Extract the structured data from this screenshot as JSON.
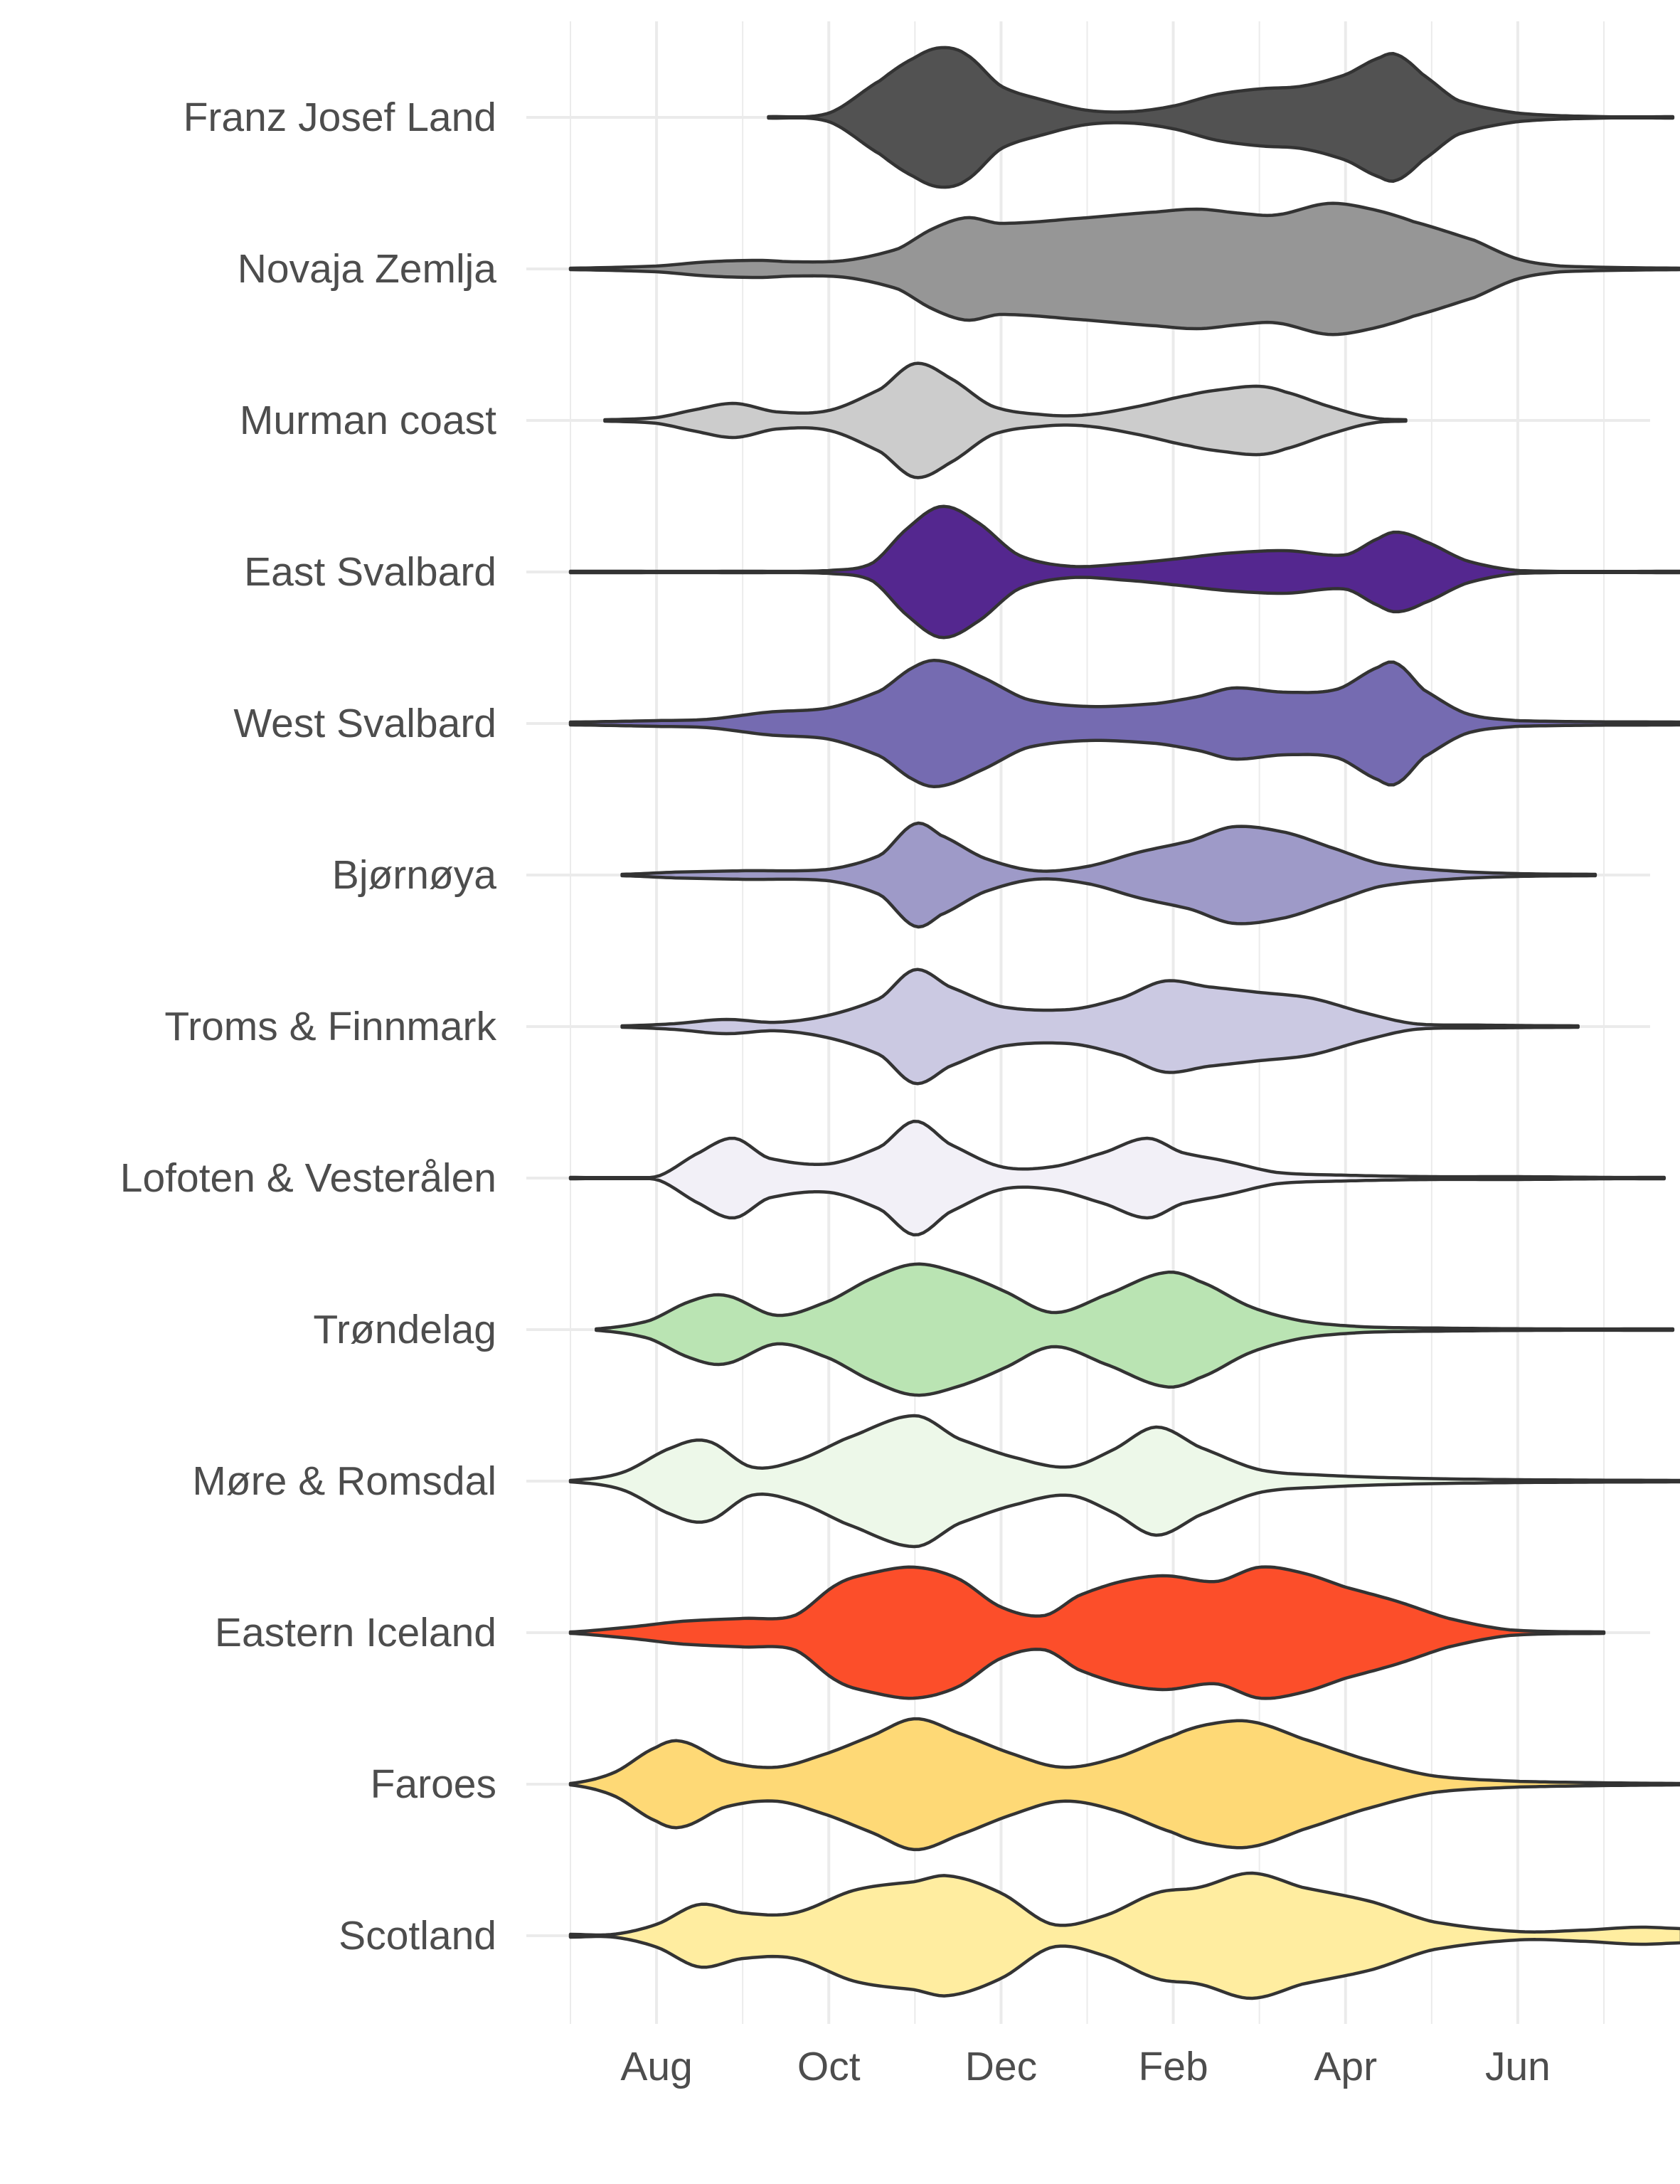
{
  "chart_data": {
    "type": "violin",
    "title": "",
    "xlabel": "",
    "ylabel": "",
    "x_axis": {
      "ticks": [
        {
          "label": "Aug",
          "month": 1
        },
        {
          "label": "Oct",
          "month": 3
        },
        {
          "label": "Dec",
          "month": 5
        },
        {
          "label": "Feb",
          "month": 7
        },
        {
          "label": "Apr",
          "month": 9
        },
        {
          "label": "Jun",
          "month": 11
        }
      ]
    },
    "grid": true,
    "series": [
      {
        "name": "Franz Josef Land",
        "color": "#525252",
        "range": [
          2.3,
          12.8
        ],
        "density": [
          [
            2.3,
            0.005
          ],
          [
            3.0,
            0.03
          ],
          [
            3.6,
            0.26
          ],
          [
            4.0,
            0.42
          ],
          [
            4.3,
            0.49
          ],
          [
            4.6,
            0.44
          ],
          [
            5.0,
            0.22
          ],
          [
            5.5,
            0.12
          ],
          [
            6.0,
            0.05
          ],
          [
            6.5,
            0.04
          ],
          [
            7.0,
            0.08
          ],
          [
            7.5,
            0.16
          ],
          [
            8.0,
            0.2
          ],
          [
            8.5,
            0.22
          ],
          [
            9.0,
            0.3
          ],
          [
            9.4,
            0.42
          ],
          [
            9.6,
            0.44
          ],
          [
            9.9,
            0.3
          ],
          [
            10.3,
            0.12
          ],
          [
            11.0,
            0.03
          ],
          [
            12.0,
            0.005
          ],
          [
            12.8,
            0.005
          ]
        ]
      },
      {
        "name": "Novaja Zemlja",
        "color": "#969696",
        "range": [
          0.0,
          12.9
        ],
        "density": [
          [
            0.0,
            0.005
          ],
          [
            1.0,
            0.02
          ],
          [
            1.6,
            0.05
          ],
          [
            2.2,
            0.06
          ],
          [
            2.6,
            0.05
          ],
          [
            3.2,
            0.06
          ],
          [
            3.8,
            0.14
          ],
          [
            4.2,
            0.28
          ],
          [
            4.6,
            0.36
          ],
          [
            5.0,
            0.32
          ],
          [
            6.0,
            0.36
          ],
          [
            6.8,
            0.4
          ],
          [
            7.3,
            0.42
          ],
          [
            7.8,
            0.39
          ],
          [
            8.2,
            0.38
          ],
          [
            8.8,
            0.46
          ],
          [
            9.3,
            0.42
          ],
          [
            9.8,
            0.33
          ],
          [
            10.5,
            0.2
          ],
          [
            11.0,
            0.07
          ],
          [
            11.5,
            0.02
          ],
          [
            12.9,
            0.005
          ]
        ]
      },
      {
        "name": "Murman coast",
        "color": "#cccccc",
        "range": [
          0.4,
          9.7
        ],
        "density": [
          [
            0.4,
            0.005
          ],
          [
            1.0,
            0.02
          ],
          [
            1.4,
            0.07
          ],
          [
            1.9,
            0.12
          ],
          [
            2.4,
            0.06
          ],
          [
            3.0,
            0.07
          ],
          [
            3.6,
            0.22
          ],
          [
            4.0,
            0.4
          ],
          [
            4.4,
            0.3
          ],
          [
            4.9,
            0.1
          ],
          [
            5.5,
            0.04
          ],
          [
            6.0,
            0.04
          ],
          [
            6.6,
            0.1
          ],
          [
            7.2,
            0.18
          ],
          [
            7.6,
            0.22
          ],
          [
            8.0,
            0.24
          ],
          [
            8.3,
            0.2
          ],
          [
            8.8,
            0.1
          ],
          [
            9.3,
            0.02
          ],
          [
            9.7,
            0.005
          ]
        ]
      },
      {
        "name": "East Svalbard",
        "color": "#54278f",
        "range": [
          0.0,
          12.9
        ],
        "density": [
          [
            0.0,
            0.005
          ],
          [
            2.0,
            0.005
          ],
          [
            3.0,
            0.01
          ],
          [
            3.5,
            0.06
          ],
          [
            3.9,
            0.3
          ],
          [
            4.3,
            0.46
          ],
          [
            4.7,
            0.36
          ],
          [
            5.2,
            0.12
          ],
          [
            5.8,
            0.04
          ],
          [
            6.5,
            0.06
          ],
          [
            7.0,
            0.09
          ],
          [
            7.6,
            0.13
          ],
          [
            8.3,
            0.15
          ],
          [
            9.0,
            0.12
          ],
          [
            9.4,
            0.24
          ],
          [
            9.6,
            0.28
          ],
          [
            9.9,
            0.22
          ],
          [
            10.4,
            0.08
          ],
          [
            11.0,
            0.01
          ],
          [
            12.9,
            0.005
          ]
        ]
      },
      {
        "name": "West Svalbard",
        "color": "#756bb1",
        "range": [
          0.0,
          12.9
        ],
        "density": [
          [
            0.0,
            0.01
          ],
          [
            1.0,
            0.02
          ],
          [
            1.6,
            0.03
          ],
          [
            2.3,
            0.08
          ],
          [
            3.0,
            0.11
          ],
          [
            3.6,
            0.23
          ],
          [
            4.0,
            0.4
          ],
          [
            4.3,
            0.44
          ],
          [
            4.8,
            0.32
          ],
          [
            5.3,
            0.17
          ],
          [
            6.0,
            0.12
          ],
          [
            6.8,
            0.14
          ],
          [
            7.3,
            0.19
          ],
          [
            7.7,
            0.25
          ],
          [
            8.3,
            0.22
          ],
          [
            8.9,
            0.24
          ],
          [
            9.4,
            0.4
          ],
          [
            9.6,
            0.42
          ],
          [
            9.9,
            0.24
          ],
          [
            10.4,
            0.07
          ],
          [
            11.0,
            0.02
          ],
          [
            12.9,
            0.01
          ]
        ]
      },
      {
        "name": "Bjørnøya",
        "color": "#9e9ac8",
        "range": [
          0.6,
          11.9
        ],
        "density": [
          [
            0.6,
            0.005
          ],
          [
            1.2,
            0.02
          ],
          [
            2.0,
            0.03
          ],
          [
            3.0,
            0.04
          ],
          [
            3.6,
            0.14
          ],
          [
            4.0,
            0.36
          ],
          [
            4.3,
            0.28
          ],
          [
            4.8,
            0.12
          ],
          [
            5.4,
            0.03
          ],
          [
            6.0,
            0.06
          ],
          [
            6.6,
            0.16
          ],
          [
            7.2,
            0.24
          ],
          [
            7.7,
            0.34
          ],
          [
            8.3,
            0.3
          ],
          [
            8.8,
            0.2
          ],
          [
            9.4,
            0.08
          ],
          [
            10.2,
            0.03
          ],
          [
            11.0,
            0.01
          ],
          [
            11.9,
            0.005
          ]
        ]
      },
      {
        "name": "Troms & Finnmark",
        "color": "#cbc9e2",
        "range": [
          0.6,
          11.7
        ],
        "density": [
          [
            0.6,
            0.005
          ],
          [
            1.2,
            0.02
          ],
          [
            1.8,
            0.05
          ],
          [
            2.4,
            0.03
          ],
          [
            3.0,
            0.08
          ],
          [
            3.6,
            0.2
          ],
          [
            4.0,
            0.4
          ],
          [
            4.4,
            0.28
          ],
          [
            5.0,
            0.14
          ],
          [
            5.8,
            0.12
          ],
          [
            6.4,
            0.2
          ],
          [
            6.9,
            0.32
          ],
          [
            7.4,
            0.28
          ],
          [
            8.0,
            0.24
          ],
          [
            8.6,
            0.2
          ],
          [
            9.2,
            0.1
          ],
          [
            9.8,
            0.02
          ],
          [
            10.6,
            0.01
          ],
          [
            11.7,
            0.005
          ]
        ]
      },
      {
        "name": "Lofoten & Vesterålen",
        "color": "#f2f0f7",
        "range": [
          0.0,
          12.7
        ],
        "density": [
          [
            0.0,
            0.005
          ],
          [
            1.0,
            0.01
          ],
          [
            1.5,
            0.18
          ],
          [
            1.9,
            0.28
          ],
          [
            2.3,
            0.14
          ],
          [
            3.0,
            0.1
          ],
          [
            3.6,
            0.22
          ],
          [
            4.0,
            0.4
          ],
          [
            4.4,
            0.24
          ],
          [
            5.0,
            0.08
          ],
          [
            5.6,
            0.08
          ],
          [
            6.2,
            0.18
          ],
          [
            6.7,
            0.28
          ],
          [
            7.1,
            0.18
          ],
          [
            7.6,
            0.12
          ],
          [
            8.2,
            0.04
          ],
          [
            9.0,
            0.02
          ],
          [
            10.0,
            0.01
          ],
          [
            11.0,
            0.01
          ],
          [
            12.0,
            0.005
          ],
          [
            12.7,
            0.005
          ]
        ]
      },
      {
        "name": "Trøndelag",
        "color": "#bae4b3",
        "range": [
          0.3,
          12.8
        ],
        "density": [
          [
            0.3,
            0.005
          ],
          [
            0.9,
            0.06
          ],
          [
            1.4,
            0.2
          ],
          [
            1.8,
            0.24
          ],
          [
            2.4,
            0.1
          ],
          [
            3.0,
            0.2
          ],
          [
            3.5,
            0.36
          ],
          [
            4.0,
            0.46
          ],
          [
            4.5,
            0.4
          ],
          [
            5.0,
            0.28
          ],
          [
            5.6,
            0.12
          ],
          [
            6.2,
            0.24
          ],
          [
            6.9,
            0.4
          ],
          [
            7.3,
            0.34
          ],
          [
            7.9,
            0.16
          ],
          [
            8.5,
            0.06
          ],
          [
            9.2,
            0.02
          ],
          [
            10.2,
            0.01
          ],
          [
            11.3,
            0.005
          ],
          [
            12.8,
            0.005
          ]
        ]
      },
      {
        "name": "Møre & Romsdal",
        "color": "#edf8e9",
        "range": [
          0.0,
          12.9
        ],
        "density": [
          [
            0.0,
            0.005
          ],
          [
            0.6,
            0.06
          ],
          [
            1.2,
            0.24
          ],
          [
            1.6,
            0.28
          ],
          [
            2.1,
            0.1
          ],
          [
            2.6,
            0.14
          ],
          [
            3.2,
            0.3
          ],
          [
            4.0,
            0.46
          ],
          [
            4.5,
            0.3
          ],
          [
            5.2,
            0.16
          ],
          [
            5.8,
            0.1
          ],
          [
            6.3,
            0.22
          ],
          [
            6.8,
            0.38
          ],
          [
            7.3,
            0.24
          ],
          [
            8.0,
            0.08
          ],
          [
            8.8,
            0.04
          ],
          [
            9.8,
            0.02
          ],
          [
            11.0,
            0.01
          ],
          [
            12.9,
            0.005
          ]
        ]
      },
      {
        "name": "Eastern Iceland",
        "color": "#fc4e2a",
        "range": [
          0.0,
          12.0
        ],
        "density": [
          [
            0.0,
            0.005
          ],
          [
            0.7,
            0.04
          ],
          [
            1.3,
            0.08
          ],
          [
            2.0,
            0.1
          ],
          [
            2.6,
            0.12
          ],
          [
            3.1,
            0.34
          ],
          [
            3.5,
            0.42
          ],
          [
            4.0,
            0.46
          ],
          [
            4.5,
            0.38
          ],
          [
            5.0,
            0.18
          ],
          [
            5.5,
            0.12
          ],
          [
            5.9,
            0.26
          ],
          [
            6.4,
            0.36
          ],
          [
            6.9,
            0.4
          ],
          [
            7.5,
            0.36
          ],
          [
            8.0,
            0.46
          ],
          [
            8.5,
            0.42
          ],
          [
            9.0,
            0.32
          ],
          [
            9.6,
            0.22
          ],
          [
            10.2,
            0.1
          ],
          [
            10.9,
            0.02
          ],
          [
            12.0,
            0.005
          ]
        ]
      },
      {
        "name": "Faroes",
        "color": "#fed976",
        "range": [
          0.0,
          12.9
        ],
        "density": [
          [
            0.0,
            0.005
          ],
          [
            0.5,
            0.08
          ],
          [
            1.0,
            0.26
          ],
          [
            1.3,
            0.3
          ],
          [
            1.8,
            0.16
          ],
          [
            2.4,
            0.12
          ],
          [
            3.0,
            0.22
          ],
          [
            3.5,
            0.34
          ],
          [
            4.0,
            0.46
          ],
          [
            4.5,
            0.36
          ],
          [
            5.1,
            0.22
          ],
          [
            5.7,
            0.12
          ],
          [
            6.3,
            0.18
          ],
          [
            7.0,
            0.34
          ],
          [
            7.4,
            0.42
          ],
          [
            7.9,
            0.44
          ],
          [
            8.5,
            0.32
          ],
          [
            9.2,
            0.18
          ],
          [
            10.0,
            0.06
          ],
          [
            11.0,
            0.02
          ],
          [
            12.9,
            0.005
          ]
        ]
      },
      {
        "name": "Scotland",
        "color": "#ffeda0",
        "range": [
          0.0,
          12.9
        ],
        "density": [
          [
            0.0,
            0.01
          ],
          [
            0.5,
            0.01
          ],
          [
            1.0,
            0.08
          ],
          [
            1.5,
            0.22
          ],
          [
            2.0,
            0.16
          ],
          [
            2.6,
            0.16
          ],
          [
            3.3,
            0.32
          ],
          [
            4.0,
            0.38
          ],
          [
            4.4,
            0.42
          ],
          [
            5.0,
            0.3
          ],
          [
            5.6,
            0.08
          ],
          [
            6.2,
            0.14
          ],
          [
            6.8,
            0.3
          ],
          [
            7.3,
            0.34
          ],
          [
            7.9,
            0.44
          ],
          [
            8.5,
            0.34
          ],
          [
            9.3,
            0.24
          ],
          [
            10.0,
            0.1
          ],
          [
            11.0,
            0.03
          ],
          [
            11.8,
            0.04
          ],
          [
            12.4,
            0.06
          ],
          [
            12.9,
            0.05
          ]
        ]
      }
    ]
  }
}
